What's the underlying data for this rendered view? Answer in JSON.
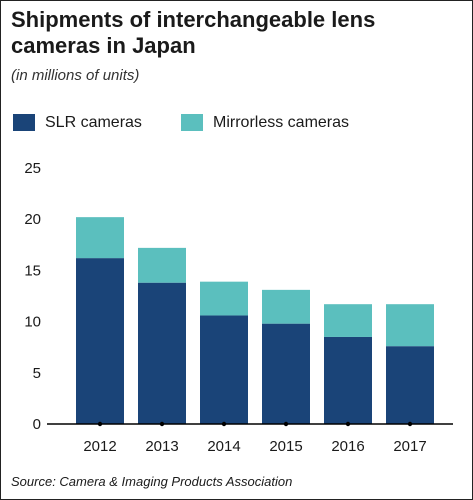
{
  "header": {
    "title": "Shipments of interchangeable lens cameras in Japan",
    "subtitle": "(in millions of units)"
  },
  "source": "Source: Camera & Imaging Products Association",
  "colors": {
    "slr": "#1a4478",
    "mirrorless": "#5bbfbe",
    "axis": "#000000"
  },
  "chart_data": {
    "type": "bar",
    "stacked": true,
    "categories": [
      "2012",
      "2013",
      "2014",
      "2015",
      "2016",
      "2017"
    ],
    "series": [
      {
        "name": "SLR cameras",
        "values": [
          16.2,
          13.8,
          10.6,
          9.8,
          8.5,
          7.6
        ]
      },
      {
        "name": "Mirrorless cameras",
        "values": [
          4.0,
          3.4,
          3.3,
          3.3,
          3.2,
          4.1
        ]
      }
    ],
    "title": "Shipments of interchangeable lens cameras in Japan",
    "subtitle": "(in millions of units)",
    "xlabel": "",
    "ylabel": "",
    "ylim": [
      0,
      25
    ],
    "yticks": [
      0,
      5,
      10,
      15,
      20,
      25
    ],
    "grid": false,
    "legend": "top-left"
  }
}
